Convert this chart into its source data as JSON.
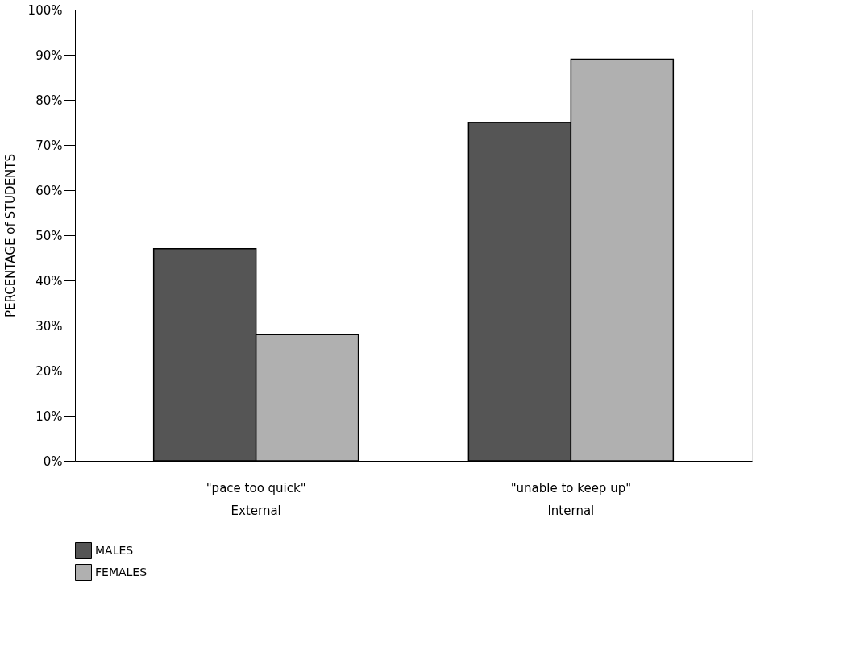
{
  "chart_data": {
    "type": "bar",
    "categories": [
      "\"pace too quick\"",
      "\"unable to keep up\""
    ],
    "series": [
      {
        "name": "MALES",
        "color": "#555555",
        "values": [
          47,
          75
        ]
      },
      {
        "name": "FEMALES",
        "color": "#b0b0b0",
        "values": [
          28,
          89
        ]
      }
    ],
    "ylabel": "PERCENTAGE of STUDENTS",
    "ylim": [
      0,
      100
    ],
    "yticks": [
      {
        "value": 0,
        "label": "0%"
      },
      {
        "value": 10,
        "label": "10%"
      },
      {
        "value": 20,
        "label": "20%"
      },
      {
        "value": 30,
        "label": "30%"
      },
      {
        "value": 40,
        "label": "40%"
      },
      {
        "value": 50,
        "label": "50%"
      },
      {
        "value": 60,
        "label": "60%"
      },
      {
        "value": 70,
        "label": "70%"
      },
      {
        "value": 80,
        "label": "80%"
      },
      {
        "value": 90,
        "label": "90%"
      },
      {
        "value": 100,
        "label": "100%"
      }
    ],
    "annotations": [
      "External",
      "Internal"
    ],
    "grid": false,
    "legend": "bottom"
  }
}
